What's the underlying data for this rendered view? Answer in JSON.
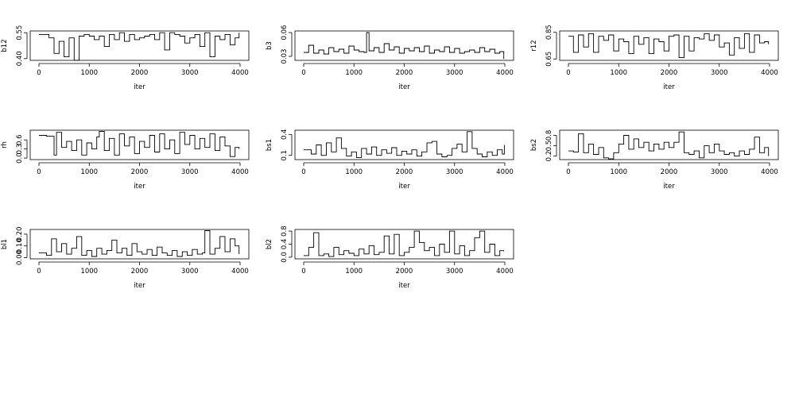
{
  "chart_data": [
    {
      "type": "line",
      "ylabel": "b12",
      "xlabel": "iter",
      "xlim": [
        0,
        4000
      ],
      "ylim": [
        0.39,
        0.56
      ],
      "xticks": [
        0,
        1000,
        2000,
        3000,
        4000
      ],
      "yticks": [
        0.4,
        0.55
      ],
      "ytick_labels": [
        "0.40",
        "0.55"
      ],
      "series": [
        {
          "x": [
            0,
            200,
            300,
            400,
            500,
            600,
            700,
            800,
            900,
            1000,
            1100,
            1200,
            1300,
            1400,
            1500,
            1600,
            1700,
            1800,
            1900,
            2000,
            2100,
            2200,
            2300,
            2400,
            2500,
            2600,
            2700,
            2800,
            2900,
            3000,
            3100,
            3200,
            3300,
            3400,
            3500,
            3600,
            3700,
            3800,
            3900,
            3980
          ],
          "values": [
            0.54,
            0.52,
            0.43,
            0.5,
            0.41,
            0.52,
            0.39,
            0.53,
            0.54,
            0.53,
            0.51,
            0.53,
            0.47,
            0.54,
            0.51,
            0.55,
            0.5,
            0.54,
            0.51,
            0.52,
            0.53,
            0.54,
            0.51,
            0.55,
            0.45,
            0.55,
            0.54,
            0.53,
            0.49,
            0.52,
            0.54,
            0.47,
            0.55,
            0.41,
            0.53,
            0.51,
            0.54,
            0.48,
            0.52,
            0.55
          ]
        }
      ]
    },
    {
      "type": "line",
      "ylabel": "b3",
      "xlabel": "iter",
      "xlim": [
        0,
        4000
      ],
      "ylim": [
        0.025,
        0.062
      ],
      "xticks": [
        0,
        1000,
        2000,
        3000,
        4000
      ],
      "yticks": [
        0.03,
        0.06
      ],
      "ytick_labels": [
        "0.03",
        "0.06"
      ],
      "series": [
        {
          "x": [
            0,
            100,
            200,
            300,
            400,
            500,
            600,
            700,
            800,
            900,
            1000,
            1100,
            1200,
            1250,
            1300,
            1400,
            1500,
            1600,
            1700,
            1800,
            1900,
            2000,
            2100,
            2200,
            2300,
            2400,
            2500,
            2600,
            2700,
            2800,
            2900,
            3000,
            3100,
            3200,
            3300,
            3400,
            3500,
            3600,
            3700,
            3800,
            3900,
            3980
          ],
          "values": [
            0.035,
            0.044,
            0.034,
            0.038,
            0.033,
            0.041,
            0.036,
            0.039,
            0.034,
            0.043,
            0.038,
            0.036,
            0.035,
            0.06,
            0.037,
            0.041,
            0.035,
            0.046,
            0.038,
            0.042,
            0.034,
            0.04,
            0.037,
            0.041,
            0.036,
            0.043,
            0.034,
            0.038,
            0.036,
            0.042,
            0.035,
            0.04,
            0.034,
            0.036,
            0.038,
            0.035,
            0.041,
            0.036,
            0.039,
            0.034,
            0.036,
            0.027
          ]
        }
      ]
    },
    {
      "type": "line",
      "ylabel": "r12",
      "xlabel": "iter",
      "xlim": [
        0,
        4000
      ],
      "ylim": [
        0.64,
        0.86
      ],
      "xticks": [
        0,
        1000,
        2000,
        3000,
        4000
      ],
      "yticks": [
        0.65,
        0.85
      ],
      "ytick_labels": [
        "0.65",
        "0.85"
      ],
      "series": [
        {
          "x": [
            0,
            100,
            200,
            300,
            400,
            500,
            600,
            700,
            800,
            900,
            1000,
            1100,
            1200,
            1300,
            1400,
            1500,
            1600,
            1700,
            1800,
            1900,
            2000,
            2100,
            2200,
            2300,
            2400,
            2500,
            2600,
            2700,
            2800,
            2900,
            3000,
            3100,
            3200,
            3300,
            3400,
            3500,
            3600,
            3700,
            3800,
            3900,
            3980
          ],
          "values": [
            0.82,
            0.7,
            0.83,
            0.74,
            0.84,
            0.7,
            0.82,
            0.79,
            0.83,
            0.71,
            0.8,
            0.78,
            0.69,
            0.82,
            0.76,
            0.81,
            0.69,
            0.8,
            0.78,
            0.71,
            0.82,
            0.83,
            0.66,
            0.82,
            0.71,
            0.81,
            0.8,
            0.84,
            0.79,
            0.83,
            0.74,
            0.77,
            0.68,
            0.81,
            0.73,
            0.84,
            0.7,
            0.83,
            0.77,
            0.78,
            0.76
          ]
        }
      ]
    },
    {
      "type": "line",
      "ylabel": "rh",
      "xlabel": "iter",
      "xlim": [
        0,
        4000
      ],
      "ylim": [
        -0.05,
        0.92
      ],
      "xticks": [
        0,
        1000,
        2000,
        3000,
        4000
      ],
      "yticks": [
        0.0,
        0.3,
        0.6
      ],
      "ytick_labels": [
        "0.0",
        "0.3",
        "0.6"
      ],
      "series": [
        {
          "x": [
            0,
            150,
            300,
            350,
            450,
            550,
            650,
            750,
            850,
            950,
            1050,
            1150,
            1200,
            1300,
            1400,
            1500,
            1600,
            1700,
            1800,
            1900,
            2000,
            2100,
            2200,
            2300,
            2400,
            2500,
            2600,
            2700,
            2800,
            2900,
            3000,
            3100,
            3200,
            3300,
            3400,
            3500,
            3600,
            3700,
            3800,
            3900,
            3980
          ],
          "values": [
            0.75,
            0.72,
            0.1,
            0.85,
            0.35,
            0.55,
            0.25,
            0.6,
            0.1,
            0.5,
            0.3,
            0.7,
            0.88,
            0.25,
            0.65,
            0.1,
            0.8,
            0.4,
            0.7,
            0.15,
            0.55,
            0.35,
            0.75,
            0.2,
            0.8,
            0.3,
            0.6,
            0.15,
            0.85,
            0.45,
            0.75,
            0.3,
            0.65,
            0.35,
            0.8,
            0.25,
            0.7,
            0.4,
            0.05,
            0.35,
            0.3
          ]
        }
      ]
    },
    {
      "type": "line",
      "ylabel": "bs1",
      "xlabel": "iter",
      "xlim": [
        0,
        4000
      ],
      "ylim": [
        0.04,
        0.46
      ],
      "xticks": [
        0,
        1000,
        2000,
        3000,
        4000
      ],
      "yticks": [
        0.1,
        0.4
      ],
      "ytick_labels": [
        "0.1",
        "0.4"
      ],
      "series": [
        {
          "x": [
            0,
            150,
            250,
            350,
            450,
            550,
            650,
            750,
            850,
            950,
            1050,
            1150,
            1250,
            1350,
            1450,
            1550,
            1650,
            1750,
            1850,
            1950,
            2050,
            2150,
            2250,
            2350,
            2450,
            2550,
            2650,
            2750,
            2850,
            2950,
            3050,
            3150,
            3250,
            3350,
            3450,
            3550,
            3650,
            3750,
            3850,
            3950,
            3990
          ],
          "values": [
            0.18,
            0.12,
            0.25,
            0.1,
            0.28,
            0.15,
            0.35,
            0.2,
            0.09,
            0.15,
            0.07,
            0.2,
            0.12,
            0.22,
            0.1,
            0.18,
            0.13,
            0.21,
            0.1,
            0.16,
            0.12,
            0.18,
            0.09,
            0.15,
            0.28,
            0.3,
            0.12,
            0.08,
            0.1,
            0.2,
            0.26,
            0.15,
            0.44,
            0.2,
            0.12,
            0.08,
            0.15,
            0.1,
            0.18,
            0.12,
            0.25
          ]
        }
      ]
    },
    {
      "type": "line",
      "ylabel": "bs2",
      "xlabel": "iter",
      "xlim": [
        0,
        4000
      ],
      "ylim": [
        0.1,
        0.95
      ],
      "xticks": [
        0,
        1000,
        2000,
        3000,
        4000
      ],
      "yticks": [
        0.2,
        0.5,
        0.8
      ],
      "ytick_labels": [
        "0.2",
        "0.5",
        "0.8"
      ],
      "series": [
        {
          "x": [
            0,
            100,
            200,
            300,
            400,
            500,
            600,
            700,
            800,
            900,
            1000,
            1100,
            1200,
            1300,
            1400,
            1500,
            1600,
            1700,
            1800,
            1900,
            2000,
            2100,
            2200,
            2300,
            2400,
            2500,
            2600,
            2700,
            2800,
            2900,
            3000,
            3100,
            3200,
            3300,
            3400,
            3500,
            3600,
            3700,
            3800,
            3900,
            3980
          ],
          "values": [
            0.35,
            0.32,
            0.85,
            0.3,
            0.55,
            0.25,
            0.45,
            0.15,
            0.12,
            0.3,
            0.55,
            0.8,
            0.4,
            0.7,
            0.45,
            0.6,
            0.35,
            0.55,
            0.4,
            0.6,
            0.45,
            0.6,
            0.9,
            0.3,
            0.25,
            0.35,
            0.15,
            0.5,
            0.3,
            0.55,
            0.35,
            0.25,
            0.3,
            0.2,
            0.35,
            0.25,
            0.4,
            0.75,
            0.3,
            0.45,
            0.2
          ]
        }
      ]
    },
    {
      "type": "line",
      "ylabel": "bl1",
      "xlabel": "iter",
      "xlim": [
        0,
        4000
      ],
      "ylim": [
        -0.01,
        0.24
      ],
      "xticks": [
        0,
        1000,
        2000,
        3000,
        4000
      ],
      "yticks": [
        0.0,
        0.1,
        0.2
      ],
      "ytick_labels": [
        "0.00",
        "0.10",
        "0.20"
      ],
      "series": [
        {
          "x": [
            0,
            150,
            250,
            350,
            450,
            550,
            650,
            750,
            850,
            950,
            1050,
            1150,
            1250,
            1350,
            1450,
            1550,
            1650,
            1750,
            1850,
            1950,
            2050,
            2150,
            2250,
            2350,
            2450,
            2550,
            2650,
            2750,
            2850,
            2950,
            3050,
            3150,
            3250,
            3300,
            3400,
            3500,
            3600,
            3700,
            3800,
            3900,
            3980
          ],
          "values": [
            0.04,
            0.02,
            0.16,
            0.05,
            0.12,
            0.03,
            0.08,
            0.18,
            0.02,
            0.06,
            0.01,
            0.08,
            0.03,
            0.06,
            0.15,
            0.04,
            0.08,
            0.02,
            0.12,
            0.05,
            0.03,
            0.07,
            0.02,
            0.09,
            0.04,
            0.02,
            0.06,
            0.01,
            0.05,
            0.02,
            0.07,
            0.03,
            0.04,
            0.23,
            0.03,
            0.08,
            0.18,
            0.05,
            0.16,
            0.1,
            0.03
          ]
        }
      ]
    },
    {
      "type": "line",
      "ylabel": "bl2",
      "xlabel": "iter",
      "xlim": [
        0,
        4000
      ],
      "ylim": [
        -0.05,
        0.85
      ],
      "xticks": [
        0,
        1000,
        2000,
        3000,
        4000
      ],
      "yticks": [
        0.0,
        0.4,
        0.8
      ],
      "ytick_labels": [
        "0.0",
        "0.4",
        "0.8"
      ],
      "series": [
        {
          "x": [
            0,
            100,
            200,
            300,
            400,
            500,
            600,
            700,
            800,
            900,
            1000,
            1100,
            1200,
            1300,
            1400,
            1500,
            1600,
            1700,
            1800,
            1900,
            2000,
            2100,
            2200,
            2300,
            2400,
            2500,
            2600,
            2700,
            2800,
            2900,
            3000,
            3100,
            3200,
            3300,
            3400,
            3500,
            3600,
            3700,
            3800,
            3900,
            3980
          ],
          "values": [
            0.05,
            0.3,
            0.75,
            0.05,
            0.1,
            0.02,
            0.3,
            0.08,
            0.2,
            0.12,
            0.05,
            0.25,
            0.1,
            0.35,
            0.08,
            0.15,
            0.65,
            0.1,
            0.7,
            0.05,
            0.15,
            0.3,
            0.8,
            0.45,
            0.2,
            0.3,
            0.05,
            0.4,
            0.15,
            0.8,
            0.1,
            0.35,
            0.05,
            0.2,
            0.6,
            0.8,
            0.15,
            0.4,
            0.05,
            0.2,
            0.18
          ]
        }
      ]
    }
  ]
}
